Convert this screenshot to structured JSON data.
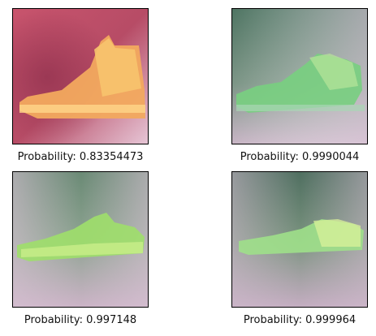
{
  "panels": [
    {
      "caption": "Probability: 0.83354473",
      "shoe_color": "#f4b161",
      "bg_top": "#c0506a",
      "bg_bottom": "#d3a9be",
      "tint": "#e4c6d6"
    },
    {
      "caption": "Probability: 0.9990044",
      "shoe_color": "#7fd27f",
      "bg_top": "#5b7d6b",
      "bg_bottom": "#b9a9b8",
      "tint": "#d0c0cf"
    },
    {
      "caption": "Probability: 0.997148",
      "shoe_color": "#9ee06c",
      "bg_top": "#6b8a75",
      "bg_bottom": "#c7b1c3",
      "tint": "#d9c6d4"
    },
    {
      "caption": "Probability: 0.999964",
      "shoe_color": "#a8e68a",
      "bg_top": "#577868",
      "bg_bottom": "#c4aec1",
      "tint": "#d3bfd0"
    }
  ]
}
